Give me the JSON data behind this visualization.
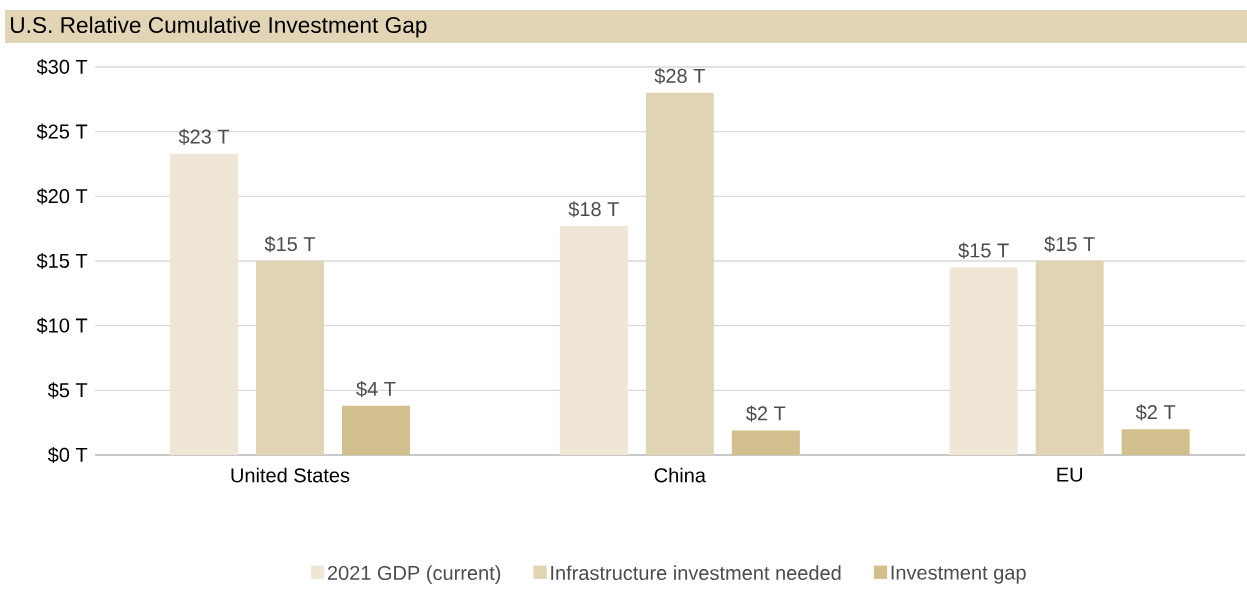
{
  "chart_data": {
    "type": "bar",
    "title": "U.S. Relative Cumulative Investment Gap",
    "categories": [
      "United States",
      "China",
      "EU"
    ],
    "series": [
      {
        "name": "2021 GDP (current)",
        "color": "#efe6d5",
        "values": [
          23.3,
          17.7,
          14.5
        ],
        "value_labels": [
          "$23 T",
          "$18 T",
          "$15 T"
        ]
      },
      {
        "name": "Infrastructure investment needed",
        "color": "#e1d4b2",
        "values": [
          15,
          28,
          15
        ],
        "value_labels": [
          "$15 T",
          "$28 T",
          "$15 T"
        ]
      },
      {
        "name": "Investment gap",
        "color": "#d2bf8e",
        "values": [
          3.8,
          1.9,
          2.0
        ],
        "value_labels": [
          "$4 T",
          "$2 T",
          "$2 T"
        ]
      }
    ],
    "ylim": [
      0,
      30
    ],
    "yticks": [
      {
        "value": 0,
        "label": "$0 T"
      },
      {
        "value": 5,
        "label": "$5 T"
      },
      {
        "value": 10,
        "label": "$10 T"
      },
      {
        "value": 15,
        "label": "$15 T"
      },
      {
        "value": 20,
        "label": "$20 T"
      },
      {
        "value": 25,
        "label": "$25 T"
      },
      {
        "value": 30,
        "label": "$30 T"
      }
    ],
    "grid": "y",
    "legend": "bottom"
  }
}
